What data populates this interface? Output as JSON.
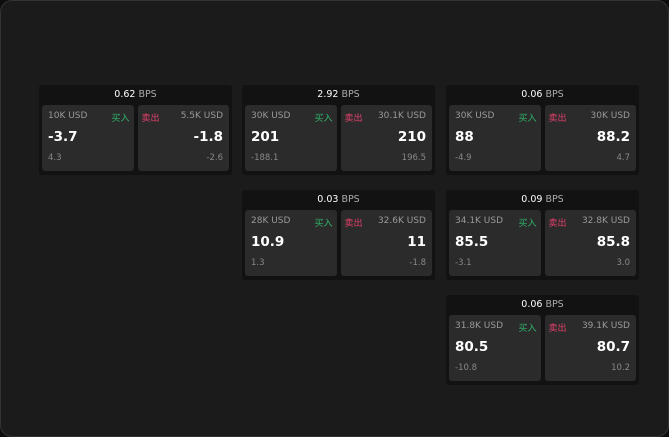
{
  "unit": "BPS",
  "buy_label": "买入",
  "sell_label": "卖出",
  "colors": {
    "buy": "#2fb56a",
    "sell": "#e2406a",
    "background": "#1b1b1b"
  },
  "panels": [
    {
      "spread": "0.62",
      "buy": {
        "amount": "10K USD",
        "price": "-3.7",
        "change": "4.3"
      },
      "sell": {
        "amount": "5.5K USD",
        "price": "-1.8",
        "change": "-2.6"
      }
    },
    {
      "spread": "2.92",
      "buy": {
        "amount": "30K USD",
        "price": "201",
        "change": "-188.1"
      },
      "sell": {
        "amount": "30.1K USD",
        "price": "210",
        "change": "196.5"
      }
    },
    {
      "spread": "0.06",
      "buy": {
        "amount": "30K USD",
        "price": "88",
        "change": "-4.9"
      },
      "sell": {
        "amount": "30K USD",
        "price": "88.2",
        "change": "4.7"
      }
    },
    {
      "spread": "0.03",
      "buy": {
        "amount": "28K USD",
        "price": "10.9",
        "change": "1.3"
      },
      "sell": {
        "amount": "32.6K USD",
        "price": "11",
        "change": "-1.8"
      }
    },
    {
      "spread": "0.09",
      "buy": {
        "amount": "34.1K USD",
        "price": "85.5",
        "change": "-3.1"
      },
      "sell": {
        "amount": "32.8K USD",
        "price": "85.8",
        "change": "3.0"
      }
    },
    {
      "spread": "0.06",
      "buy": {
        "amount": "31.8K USD",
        "price": "80.5",
        "change": "-10.8"
      },
      "sell": {
        "amount": "39.1K USD",
        "price": "80.7",
        "change": "10.2"
      }
    }
  ]
}
